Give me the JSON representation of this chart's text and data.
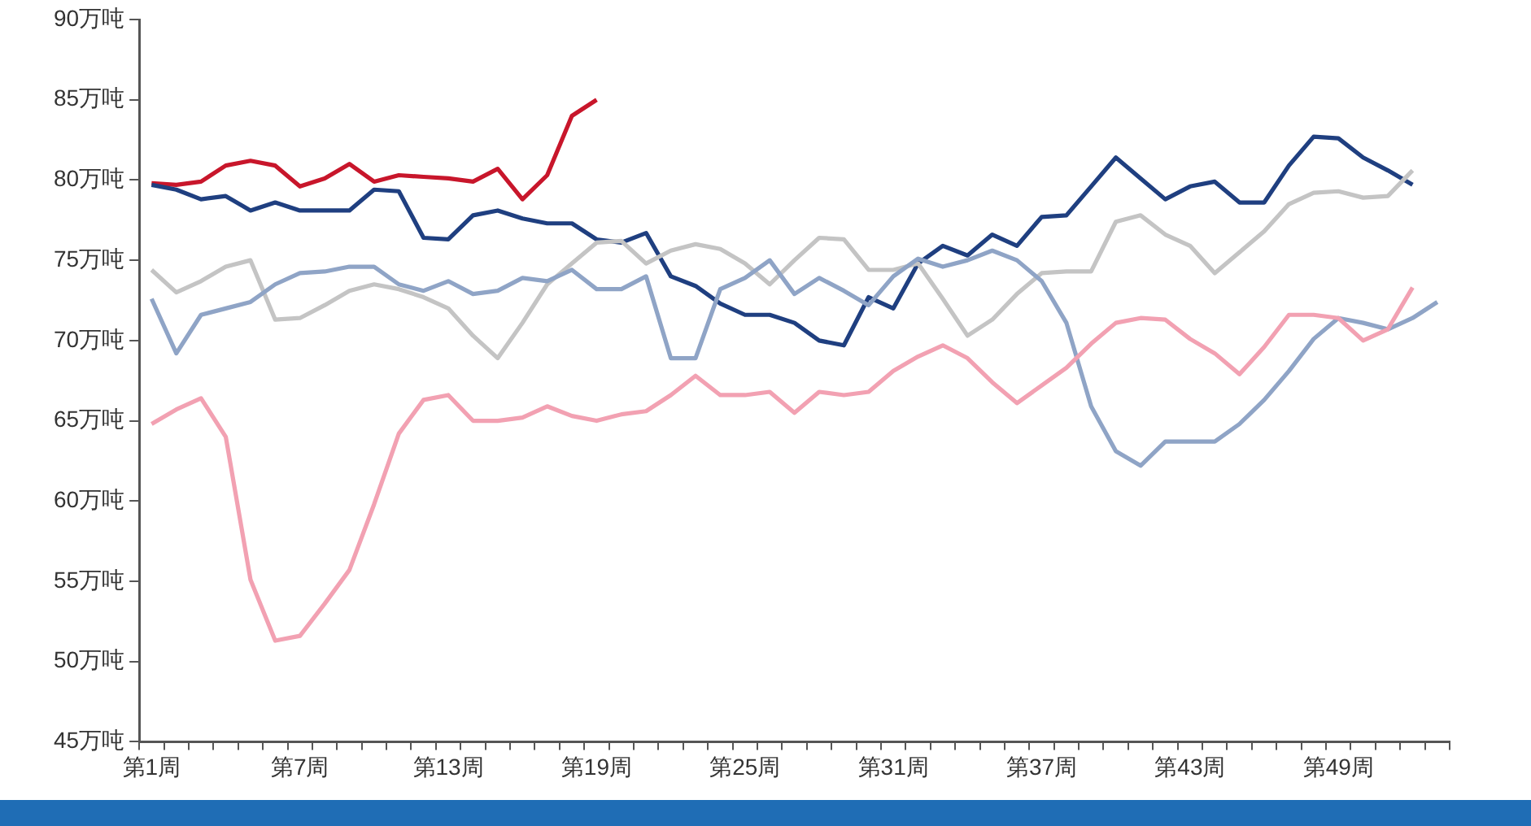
{
  "chart_data": {
    "type": "line",
    "categories": [
      "第1周",
      null,
      null,
      null,
      null,
      null,
      "第7周",
      null,
      null,
      null,
      null,
      null,
      "第13周",
      null,
      null,
      null,
      null,
      null,
      "第19周",
      null,
      null,
      null,
      null,
      null,
      "第25周",
      null,
      null,
      null,
      null,
      null,
      "第31周",
      null,
      null,
      null,
      null,
      null,
      "第37周",
      null,
      null,
      null,
      null,
      null,
      "第43周",
      null,
      null,
      null,
      null,
      null,
      "第49周",
      null,
      null,
      null,
      null
    ],
    "series": [
      {
        "color": "#f2a1b2",
        "values": [
          64.8,
          65.7,
          66.4,
          64.0,
          55.1,
          51.3,
          51.6,
          53.6,
          55.7,
          59.8,
          64.2,
          66.3,
          66.6,
          65.0,
          65.0,
          65.2,
          65.9,
          65.3,
          65.0,
          65.4,
          65.6,
          66.6,
          67.8,
          66.6,
          66.6,
          66.8,
          65.5,
          66.8,
          66.6,
          66.8,
          68.1,
          69.0,
          69.7,
          68.9,
          67.4,
          66.1,
          67.2,
          68.3,
          69.8,
          71.1,
          71.4,
          71.3,
          70.1,
          69.2,
          67.9,
          69.6,
          71.6,
          71.6,
          71.4,
          70.0,
          70.7,
          73.3,
          null
        ]
      },
      {
        "color": "#8fa4c6",
        "values": [
          72.6,
          69.2,
          71.6,
          72.0,
          72.4,
          73.5,
          74.2,
          74.3,
          74.6,
          74.6,
          73.5,
          73.1,
          73.7,
          72.9,
          73.1,
          73.9,
          73.7,
          74.4,
          73.2,
          73.2,
          74.0,
          68.9,
          68.9,
          73.2,
          73.9,
          75.0,
          72.9,
          73.9,
          73.1,
          72.2,
          74.0,
          75.1,
          74.6,
          75.0,
          75.6,
          75.0,
          73.7,
          71.1,
          65.9,
          63.1,
          62.2,
          63.7,
          63.7,
          63.7,
          64.8,
          66.3,
          68.1,
          70.1,
          71.4,
          71.1,
          70.7,
          71.4,
          72.4
        ]
      },
      {
        "color": "#c4c4c4",
        "values": [
          74.4,
          73.0,
          73.7,
          74.6,
          75.0,
          71.3,
          71.4,
          72.2,
          73.1,
          73.5,
          73.2,
          72.7,
          72.0,
          70.3,
          68.9,
          71.1,
          73.5,
          74.8,
          76.1,
          76.2,
          74.8,
          75.6,
          76.0,
          75.7,
          74.8,
          73.5,
          75.0,
          76.4,
          76.3,
          74.4,
          74.4,
          74.8,
          72.6,
          70.3,
          71.3,
          72.9,
          74.2,
          74.3,
          74.3,
          77.4,
          77.8,
          76.6,
          75.9,
          74.2,
          75.5,
          76.8,
          78.5,
          79.2,
          79.3,
          78.9,
          79.0,
          80.6,
          null
        ]
      },
      {
        "color": "#1f3f80",
        "values": [
          79.7,
          79.4,
          78.8,
          79.0,
          78.1,
          78.6,
          78.1,
          78.1,
          78.1,
          79.4,
          79.3,
          76.4,
          76.3,
          77.8,
          78.1,
          77.6,
          77.3,
          77.3,
          76.3,
          76.1,
          76.7,
          74.0,
          73.4,
          72.3,
          71.6,
          71.6,
          71.1,
          70.0,
          69.7,
          72.7,
          72.0,
          74.8,
          75.9,
          75.3,
          76.6,
          75.9,
          77.7,
          77.8,
          79.6,
          81.4,
          80.1,
          78.8,
          79.6,
          79.9,
          78.6,
          78.6,
          80.9,
          82.7,
          82.6,
          81.4,
          80.6,
          79.7,
          null
        ]
      },
      {
        "color": "#c8162b",
        "values": [
          79.8,
          79.7,
          79.9,
          80.9,
          81.2,
          80.9,
          79.6,
          80.1,
          81.0,
          79.9,
          80.3,
          80.2,
          80.1,
          79.9,
          80.7,
          78.8,
          80.3,
          84.0,
          85.0,
          null,
          null,
          null,
          null,
          null,
          null,
          null,
          null,
          null,
          null,
          null,
          null,
          null,
          null,
          null,
          null,
          null,
          null,
          null,
          null,
          null,
          null,
          null,
          null,
          null,
          null,
          null,
          null,
          null,
          null,
          null,
          null,
          null,
          null
        ]
      }
    ],
    "ylim": [
      45,
      90
    ],
    "yticks": [
      {
        "value": 45,
        "label": "45万吨"
      },
      {
        "value": 50,
        "label": "50万吨"
      },
      {
        "value": 55,
        "label": "55万吨"
      },
      {
        "value": 60,
        "label": "60万吨"
      },
      {
        "value": 65,
        "label": "65万吨"
      },
      {
        "value": 70,
        "label": "70万吨"
      },
      {
        "value": 75,
        "label": "75万吨"
      },
      {
        "value": 80,
        "label": "80万吨"
      },
      {
        "value": 85,
        "label": "85万吨"
      },
      {
        "value": 90,
        "label": "90万吨"
      }
    ],
    "grid": false,
    "legend": false,
    "marker": "none",
    "line_style": "solid"
  }
}
